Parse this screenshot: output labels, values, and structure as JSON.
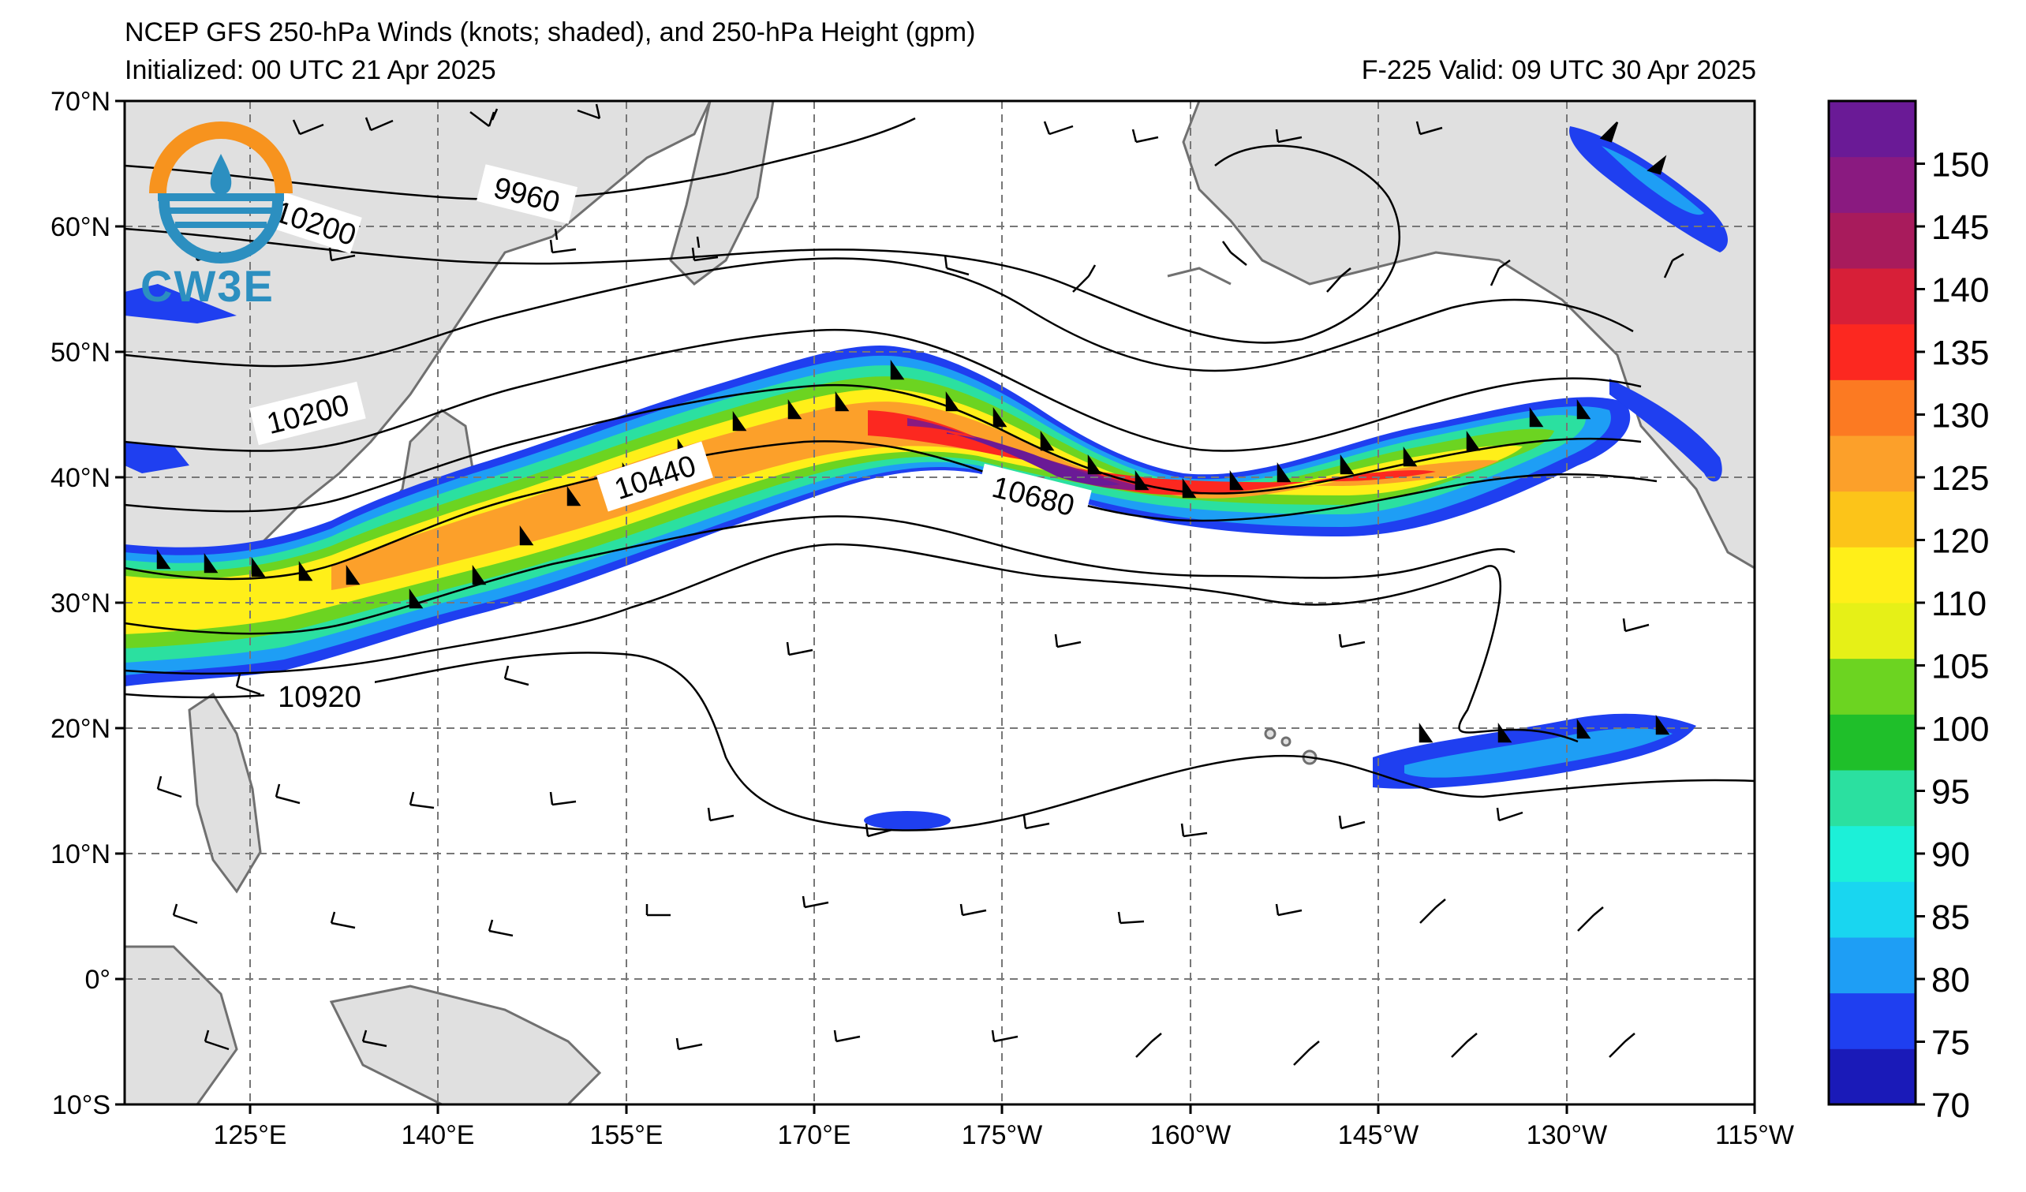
{
  "title": {
    "line1": "NCEP GFS 250-hPa Winds (knots; shaded), and 250-hPa Height (gpm)",
    "line2": "Initialized: 00 UTC 21 Apr 2025",
    "valid": "F-225  Valid: 09 UTC 30 Apr 2025"
  },
  "logo": {
    "text": "CW3E",
    "icon": "cw3e-logo-icon"
  },
  "axes": {
    "lat_labels": [
      "70°N",
      "60°N",
      "50°N",
      "40°N",
      "30°N",
      "20°N",
      "10°N",
      "0°",
      "10°S"
    ],
    "lon_labels": [
      "125°E",
      "140°E",
      "155°E",
      "170°E",
      "175°W",
      "160°W",
      "145°W",
      "130°W",
      "115°W"
    ],
    "lat_range": [
      -10,
      70
    ],
    "lon_range_east": [
      115,
      245
    ]
  },
  "contours": {
    "labels": [
      "9960",
      "10200",
      "10200",
      "10440",
      "10680",
      "10920"
    ]
  },
  "colorbar": {
    "ticks": [
      "70",
      "75",
      "80",
      "85",
      "90",
      "95",
      "100",
      "105",
      "110",
      "120",
      "125",
      "130",
      "135",
      "140",
      "145",
      "150"
    ],
    "colors": [
      "#1a1ab8",
      "#1f3ff0",
      "#1e9ef5",
      "#19d6f0",
      "#1cf0d8",
      "#2be0a0",
      "#1fbf2a",
      "#6cd421",
      "#e6f017",
      "#ffef19",
      "#fcc419",
      "#fca02a",
      "#fc7a22",
      "#fc2820",
      "#d71f38",
      "#a81b5c",
      "#8a1a80",
      "#6a1a96"
    ]
  },
  "map_data": {
    "jet_core_color": "#6a1a96",
    "land_color": "#e0e0e0",
    "coast_color": "#707070"
  }
}
